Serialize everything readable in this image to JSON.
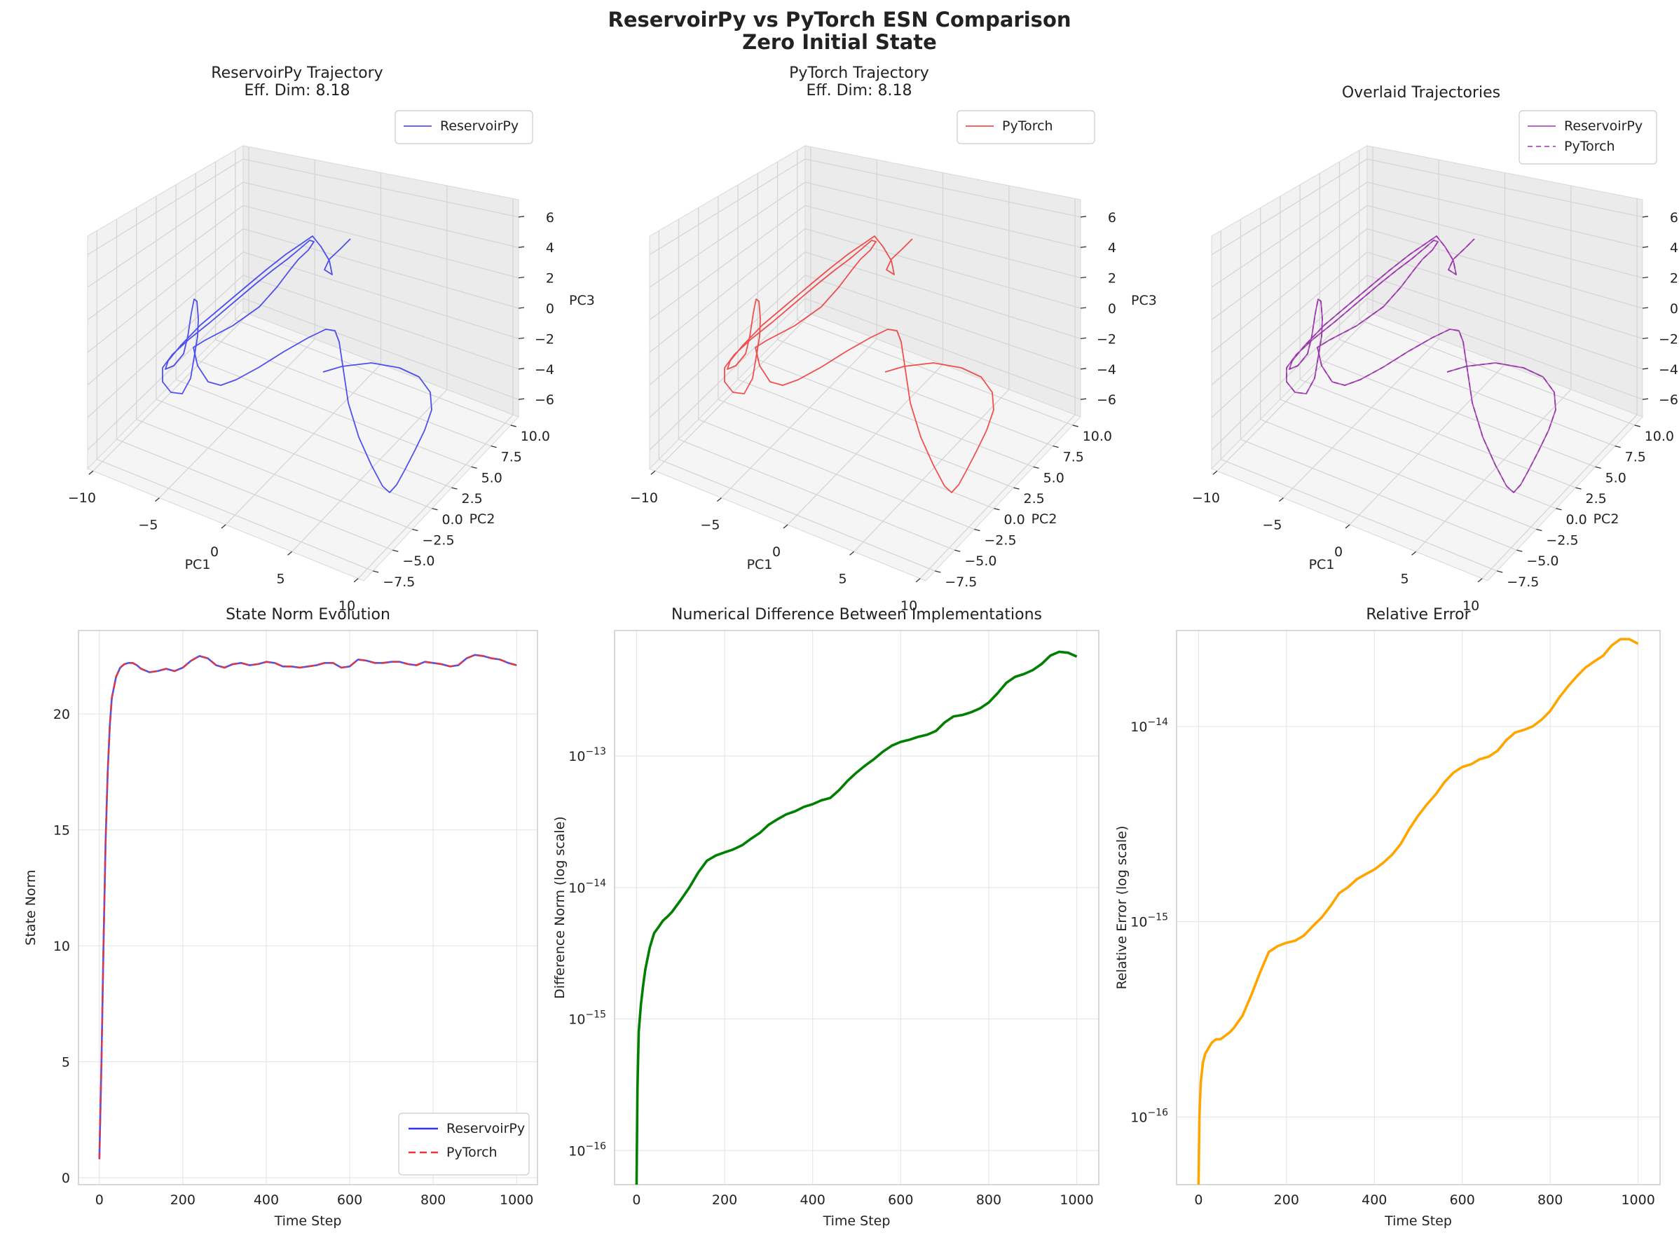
{
  "suptitle": [
    "ReservoirPy vs PyTorch ESN Comparison",
    "Zero Initial State"
  ],
  "colors": {
    "reservoirpy": "#3333ee",
    "pytorch": "#ee3333",
    "overlay": "#9933aa",
    "diff": "#007f00",
    "relerr": "#ffa500"
  },
  "chart_data": [
    {
      "type": "line3d",
      "title": [
        "ReservoirPy Trajectory",
        "Eff. Dim: 8.18"
      ],
      "xlabel": "PC1",
      "ylabel": "PC2",
      "zlabel": "PC3",
      "xticks": [
        "−10",
        "−5",
        "0",
        "5",
        "10"
      ],
      "yticks": [
        "−7.5",
        "−5.0",
        "−2.5",
        "0.0",
        "2.5",
        "5.0",
        "7.5",
        "10.0"
      ],
      "zticks": [
        "−6",
        "−4",
        "−2",
        "0",
        "2",
        "4",
        "6"
      ],
      "xlim": [
        -11,
        13
      ],
      "ylim": [
        -8.5,
        11.5
      ],
      "zlim": [
        -7,
        7
      ],
      "legend": [
        "ReservoirPy"
      ],
      "series": [
        {
          "name": "ReservoirPy",
          "style": "solid",
          "color": "reservoirpy"
        }
      ]
    },
    {
      "type": "line3d",
      "title": [
        "PyTorch Trajectory",
        "Eff. Dim: 8.18"
      ],
      "xlabel": "PC1",
      "ylabel": "PC2",
      "zlabel": "PC3",
      "xticks": [
        "−10",
        "−5",
        "0",
        "5",
        "10"
      ],
      "yticks": [
        "−7.5",
        "−5.0",
        "−2.5",
        "0.0",
        "2.5",
        "5.0",
        "7.5",
        "10.0"
      ],
      "zticks": [
        "−6",
        "−4",
        "−2",
        "0",
        "2",
        "4",
        "6"
      ],
      "xlim": [
        -11,
        13
      ],
      "ylim": [
        -8.5,
        11.5
      ],
      "zlim": [
        -7,
        7
      ],
      "legend": [
        "PyTorch"
      ],
      "series": [
        {
          "name": "PyTorch",
          "style": "solid",
          "color": "pytorch"
        }
      ]
    },
    {
      "type": "line3d",
      "title": [
        "Overlaid Trajectories"
      ],
      "xlabel": "PC1",
      "ylabel": "PC2",
      "zlabel": "",
      "xticks": [
        "−10",
        "−5",
        "0",
        "5",
        "10"
      ],
      "yticks": [
        "−7.5",
        "−5.0",
        "−2.5",
        "0.0",
        "2.5",
        "5.0",
        "7.5",
        "10.0"
      ],
      "zticks": [
        "−6",
        "−4",
        "−2",
        "0",
        "2",
        "4",
        "6"
      ],
      "xlim": [
        -11,
        13
      ],
      "ylim": [
        -8.5,
        11.5
      ],
      "zlim": [
        -7,
        7
      ],
      "legend": [
        "ReservoirPy",
        "PyTorch"
      ],
      "series": [
        {
          "name": "ReservoirPy",
          "style": "solid",
          "color": "overlay"
        },
        {
          "name": "PyTorch",
          "style": "dashed",
          "color": "overlay"
        }
      ]
    },
    {
      "type": "line",
      "title": "State Norm Evolution",
      "xlabel": "Time Step",
      "ylabel": "State Norm",
      "xlim": [
        -50,
        1050
      ],
      "ylim": [
        -0.3,
        23.6
      ],
      "xticks": [
        0,
        200,
        400,
        600,
        800,
        1000
      ],
      "yticks": [
        0,
        5,
        10,
        15,
        20
      ],
      "grid": true,
      "legend_loc": "lower right",
      "series": [
        {
          "name": "ReservoirPy",
          "style": "solid",
          "color": "reservoirpy",
          "x": [
            0,
            5,
            10,
            15,
            20,
            25,
            30,
            40,
            50,
            60,
            70,
            80,
            90,
            100,
            120,
            140,
            160,
            180,
            200,
            220,
            240,
            260,
            280,
            300,
            320,
            340,
            360,
            380,
            400,
            420,
            440,
            460,
            480,
            500,
            520,
            540,
            560,
            580,
            600,
            620,
            640,
            660,
            680,
            700,
            720,
            740,
            760,
            780,
            800,
            820,
            840,
            860,
            880,
            900,
            920,
            940,
            960,
            980,
            1000
          ],
          "y": [
            0.8,
            5,
            10,
            14.5,
            17.5,
            19.5,
            20.7,
            21.6,
            22.0,
            22.15,
            22.2,
            22.2,
            22.1,
            21.95,
            21.8,
            21.85,
            21.95,
            21.85,
            22.0,
            22.3,
            22.5,
            22.4,
            22.1,
            22.0,
            22.15,
            22.2,
            22.1,
            22.15,
            22.25,
            22.2,
            22.05,
            22.05,
            22.0,
            22.05,
            22.1,
            22.2,
            22.2,
            22.0,
            22.05,
            22.35,
            22.3,
            22.2,
            22.2,
            22.25,
            22.25,
            22.15,
            22.1,
            22.25,
            22.2,
            22.15,
            22.05,
            22.1,
            22.4,
            22.55,
            22.5,
            22.4,
            22.35,
            22.2,
            22.1
          ]
        },
        {
          "name": "PyTorch",
          "style": "dashed",
          "color": "pytorch",
          "x": [
            0,
            5,
            10,
            15,
            20,
            25,
            30,
            40,
            50,
            60,
            70,
            80,
            90,
            100,
            120,
            140,
            160,
            180,
            200,
            220,
            240,
            260,
            280,
            300,
            320,
            340,
            360,
            380,
            400,
            420,
            440,
            460,
            480,
            500,
            520,
            540,
            560,
            580,
            600,
            620,
            640,
            660,
            680,
            700,
            720,
            740,
            760,
            780,
            800,
            820,
            840,
            860,
            880,
            900,
            920,
            940,
            960,
            980,
            1000
          ],
          "y": [
            0.8,
            5,
            10,
            14.5,
            17.5,
            19.5,
            20.7,
            21.6,
            22.0,
            22.15,
            22.2,
            22.2,
            22.1,
            21.95,
            21.8,
            21.85,
            21.95,
            21.85,
            22.0,
            22.3,
            22.5,
            22.4,
            22.1,
            22.0,
            22.15,
            22.2,
            22.1,
            22.15,
            22.25,
            22.2,
            22.05,
            22.05,
            22.0,
            22.05,
            22.1,
            22.2,
            22.2,
            22.0,
            22.05,
            22.35,
            22.3,
            22.2,
            22.2,
            22.25,
            22.25,
            22.15,
            22.1,
            22.25,
            22.2,
            22.15,
            22.05,
            22.1,
            22.4,
            22.55,
            22.5,
            22.4,
            22.35,
            22.2,
            22.1
          ]
        }
      ]
    },
    {
      "type": "line",
      "title": "Numerical Difference Between Implementations",
      "xlabel": "Time Step",
      "ylabel": "Difference Norm (log scale)",
      "yscale": "log",
      "xlim": [
        -50,
        1050
      ],
      "ylim": [
        5.5e-17,
        9e-13
      ],
      "xticks": [
        0,
        200,
        400,
        600,
        800,
        1000
      ],
      "yticks": [
        "10^-16",
        "10^-15",
        "10^-14",
        "10^-13"
      ],
      "ytick_values": [
        1e-16,
        1e-15,
        1e-14,
        1e-13
      ],
      "grid": true,
      "series": [
        {
          "name": "",
          "color": "diff",
          "x": [
            0,
            2,
            5,
            10,
            15,
            20,
            30,
            40,
            50,
            60,
            70,
            80,
            100,
            120,
            140,
            160,
            180,
            200,
            220,
            240,
            260,
            280,
            300,
            320,
            340,
            360,
            380,
            400,
            420,
            440,
            460,
            480,
            500,
            520,
            540,
            560,
            580,
            600,
            620,
            640,
            660,
            680,
            700,
            720,
            740,
            760,
            780,
            800,
            820,
            840,
            860,
            880,
            900,
            920,
            940,
            960,
            980,
            1000
          ],
          "y": [
            5.5e-17,
            3e-16,
            8e-16,
            1.3e-15,
            1.8e-15,
            2.4e-15,
            3.5e-15,
            4.5e-15,
            5e-15,
            5.6e-15,
            6e-15,
            6.5e-15,
            8e-15,
            1e-14,
            1.3e-14,
            1.6e-14,
            1.75e-14,
            1.85e-14,
            1.95e-14,
            2.1e-14,
            2.35e-14,
            2.6e-14,
            3e-14,
            3.3e-14,
            3.6e-14,
            3.8e-14,
            4.1e-14,
            4.3e-14,
            4.6e-14,
            4.8e-14,
            5.5e-14,
            6.5e-14,
            7.5e-14,
            8.5e-14,
            9.5e-14,
            1.08e-13,
            1.2e-13,
            1.28e-13,
            1.33e-13,
            1.4e-13,
            1.45e-13,
            1.55e-13,
            1.8e-13,
            2e-13,
            2.05e-13,
            2.15e-13,
            2.3e-13,
            2.55e-13,
            3e-13,
            3.6e-13,
            4e-13,
            4.2e-13,
            4.5e-13,
            5e-13,
            5.8e-13,
            6.2e-13,
            6.1e-13,
            5.7e-13
          ]
        }
      ]
    },
    {
      "type": "line",
      "title": "Relative Error",
      "xlabel": "Time Step",
      "ylabel": "Relative Error (log scale)",
      "yscale": "log",
      "xlim": [
        -50,
        1050
      ],
      "ylim": [
        4.5e-17,
        3.1e-14
      ],
      "xticks": [
        0,
        200,
        400,
        600,
        800,
        1000
      ],
      "yticks": [
        "10^-16",
        "10^-15",
        "10^-14"
      ],
      "ytick_values": [
        1e-16,
        1e-15,
        1e-14
      ],
      "grid": true,
      "series": [
        {
          "name": "",
          "color": "relerr",
          "x": [
            0,
            2,
            5,
            10,
            15,
            20,
            30,
            40,
            50,
            60,
            70,
            80,
            100,
            120,
            140,
            160,
            180,
            200,
            220,
            240,
            260,
            280,
            300,
            320,
            340,
            360,
            380,
            400,
            420,
            440,
            460,
            480,
            500,
            520,
            540,
            560,
            580,
            600,
            620,
            640,
            660,
            680,
            700,
            720,
            740,
            760,
            780,
            800,
            820,
            840,
            860,
            880,
            900,
            920,
            940,
            960,
            980,
            1000
          ],
          "y": [
            4.5e-17,
            1e-16,
            1.5e-16,
            1.9e-16,
            2.1e-16,
            2.2e-16,
            2.4e-16,
            2.5e-16,
            2.5e-16,
            2.6e-16,
            2.7e-16,
            2.85e-16,
            3.3e-16,
            4.2e-16,
            5.5e-16,
            7e-16,
            7.5e-16,
            7.8e-16,
            8e-16,
            8.5e-16,
            9.5e-16,
            1.05e-15,
            1.2e-15,
            1.4e-15,
            1.5e-15,
            1.65e-15,
            1.75e-15,
            1.85e-15,
            2e-15,
            2.2e-15,
            2.5e-15,
            3e-15,
            3.5e-15,
            4e-15,
            4.5e-15,
            5.2e-15,
            5.8e-15,
            6.2e-15,
            6.4e-15,
            6.8e-15,
            7e-15,
            7.5e-15,
            8.5e-15,
            9.3e-15,
            9.6e-15,
            1e-14,
            1.08e-14,
            1.2e-14,
            1.4e-14,
            1.6e-14,
            1.8e-14,
            2e-14,
            2.15e-14,
            2.3e-14,
            2.6e-14,
            2.8e-14,
            2.8e-14,
            2.65e-14
          ]
        }
      ]
    }
  ]
}
